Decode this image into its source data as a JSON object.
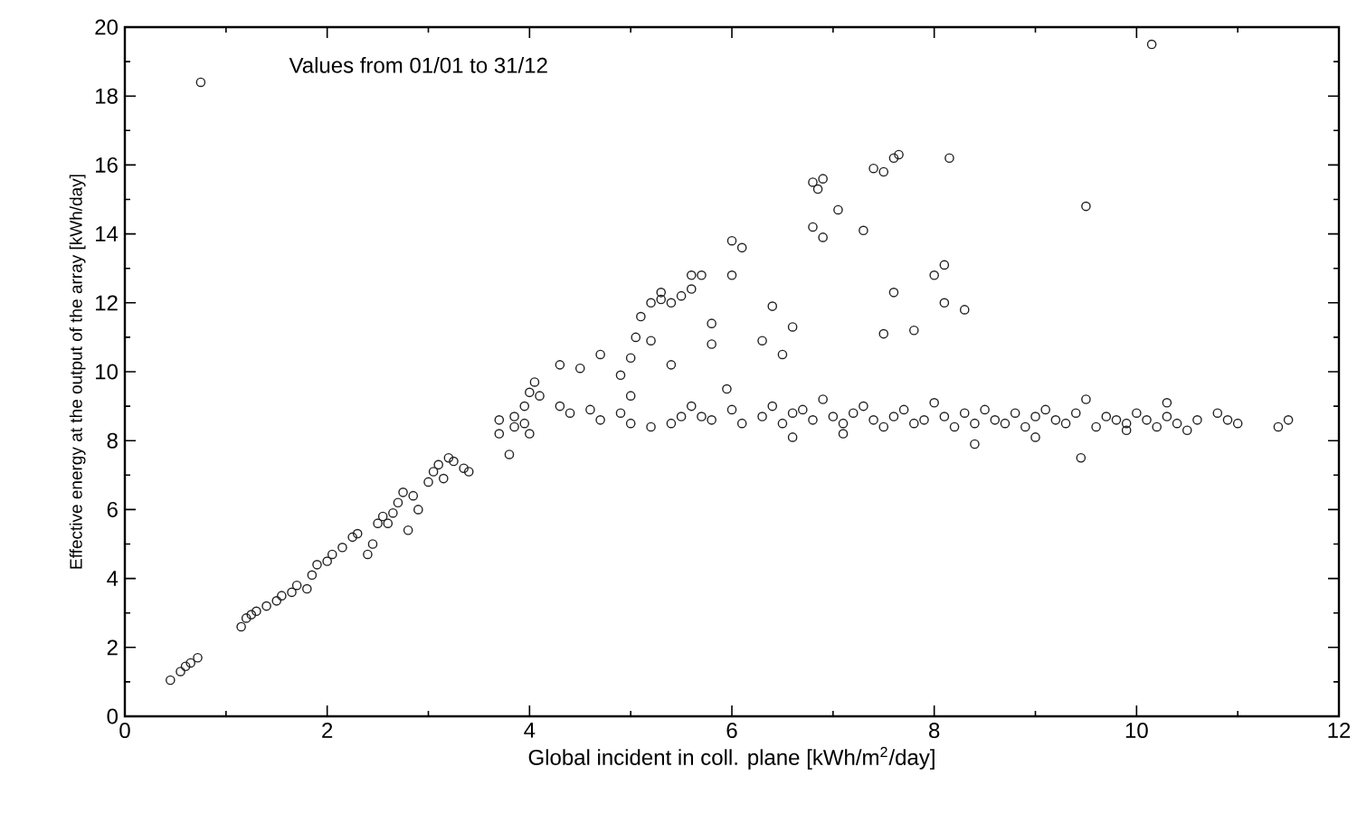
{
  "chart_data": {
    "type": "scatter",
    "annotations": [
      "Values from 01/01 to 31/12"
    ],
    "xlabel": "Global incident in coll. plane [kWh/m$^{2}$/day]",
    "ylabel": "Effective energy  at  the  output  of  the  array  [kWh/day]",
    "xlim": [
      0,
      12
    ],
    "ylim": [
      0,
      20
    ],
    "xticks": [
      0,
      {
        "value": 1,
        "label": null
      },
      2,
      {
        "value": 3,
        "label": null
      },
      4,
      {
        "value": 5,
        "label": null
      },
      6,
      {
        "value": 7,
        "label": null
      },
      8,
      {
        "value": 9,
        "label": null
      },
      10,
      {
        "value": 11,
        "label": null
      },
      12
    ],
    "yticks": [
      0,
      {
        "value": 1,
        "label": null
      },
      2,
      {
        "value": 3,
        "label": null
      },
      4,
      {
        "value": 5,
        "label": null
      },
      6,
      {
        "value": 7,
        "label": null
      },
      8,
      {
        "value": 9,
        "label": null
      },
      10,
      {
        "value": 11,
        "label": null
      },
      12,
      {
        "value": 13,
        "label": null
      },
      14,
      {
        "value": 15,
        "label": null
      },
      16,
      {
        "value": 17,
        "label": null
      },
      18,
      {
        "value": 19,
        "label": null
      },
      20
    ],
    "marker": "circle",
    "series": [
      {
        "color": "#222222",
        "x": [
          0.45,
          0.55,
          0.6,
          0.65,
          0.72,
          0.75,
          1.15,
          1.2,
          1.25,
          1.3,
          1.4,
          1.5,
          1.55,
          1.65,
          1.7,
          1.8,
          1.85,
          1.9,
          2.0,
          2.05,
          2.15,
          2.25,
          2.3,
          2.4,
          2.45,
          2.5,
          2.55,
          2.6,
          2.65,
          2.7,
          2.75,
          2.8,
          2.85,
          2.9,
          3.0,
          3.05,
          3.1,
          3.15,
          3.2,
          3.25,
          3.35,
          3.4,
          3.7,
          3.7,
          3.8,
          3.85,
          3.85,
          3.95,
          3.95,
          4.0,
          4.0,
          4.05,
          4.1,
          4.3,
          4.3,
          4.5,
          4.4,
          4.6,
          4.7,
          4.7,
          4.9,
          4.9,
          5.0,
          5.0,
          5.0,
          5.05,
          5.1,
          5.2,
          5.2,
          5.2,
          5.3,
          5.3,
          5.4,
          5.4,
          5.4,
          5.5,
          5.5,
          5.6,
          5.6,
          5.6,
          5.7,
          5.7,
          5.8,
          5.8,
          5.8,
          5.95,
          6.0,
          6.0,
          6.0,
          6.1,
          6.1,
          6.3,
          6.3,
          6.4,
          6.4,
          6.5,
          6.5,
          6.6,
          6.6,
          6.6,
          6.8,
          6.8,
          6.85,
          6.9,
          6.9,
          7.05,
          7.3,
          7.4,
          7.5,
          7.5,
          7.6,
          7.6,
          7.65,
          7.8,
          8.0,
          8.1,
          8.1,
          8.15,
          8.3,
          9.5,
          10.15,
          6.7,
          6.8,
          6.9,
          7.0,
          7.1,
          7.2,
          7.3,
          7.4,
          7.5,
          7.6,
          7.7,
          7.8,
          7.9,
          8.0,
          8.1,
          8.2,
          8.3,
          8.4,
          8.5,
          8.6,
          8.7,
          8.8,
          8.9,
          9.0,
          9.1,
          9.2,
          9.3,
          9.4,
          9.5,
          9.6,
          9.7,
          9.8,
          9.9,
          10.0,
          10.1,
          10.2,
          10.3,
          10.4,
          10.5,
          10.6,
          10.8,
          10.9,
          11.0,
          11.4,
          11.5,
          9.45,
          7.1,
          8.4,
          9.0,
          9.9,
          10.3
        ],
        "values": [
          1.05,
          1.3,
          1.45,
          1.55,
          1.7,
          18.4,
          2.6,
          2.85,
          2.95,
          3.05,
          3.2,
          3.35,
          3.5,
          3.6,
          3.8,
          3.7,
          4.1,
          4.4,
          4.5,
          4.7,
          4.9,
          5.2,
          5.3,
          4.7,
          5.0,
          5.6,
          5.8,
          5.6,
          5.9,
          6.2,
          6.5,
          5.4,
          6.4,
          6.0,
          6.8,
          7.1,
          7.3,
          6.9,
          7.5,
          7.4,
          7.2,
          7.1,
          8.6,
          8.2,
          7.6,
          8.7,
          8.4,
          9.0,
          8.5,
          9.4,
          8.2,
          9.7,
          9.3,
          10.2,
          9.0,
          10.1,
          8.8,
          8.9,
          10.5,
          8.6,
          8.8,
          9.9,
          10.4,
          9.3,
          8.5,
          11.0,
          11.6,
          12.0,
          10.9,
          8.4,
          12.3,
          12.1,
          8.5,
          12.0,
          10.2,
          12.2,
          8.7,
          12.8,
          12.4,
          9.0,
          12.8,
          8.7,
          10.8,
          11.4,
          8.6,
          9.5,
          13.8,
          12.8,
          8.9,
          13.6,
          8.5,
          10.9,
          8.7,
          11.9,
          9.0,
          10.5,
          8.5,
          11.3,
          8.8,
          8.1,
          14.2,
          15.5,
          15.3,
          13.9,
          15.6,
          14.7,
          14.1,
          15.9,
          15.8,
          11.1,
          16.2,
          12.3,
          16.3,
          11.2,
          12.8,
          13.1,
          12.0,
          16.2,
          11.8,
          14.8,
          19.5,
          8.9,
          8.6,
          9.2,
          8.7,
          8.5,
          8.8,
          9.0,
          8.6,
          8.4,
          8.7,
          8.9,
          8.5,
          8.6,
          9.1,
          8.7,
          8.4,
          8.8,
          8.5,
          8.9,
          8.6,
          8.5,
          8.8,
          8.4,
          8.7,
          8.9,
          8.6,
          8.5,
          8.8,
          9.2,
          8.4,
          8.7,
          8.6,
          8.5,
          8.8,
          8.6,
          8.4,
          8.7,
          8.5,
          8.3,
          8.6,
          8.8,
          8.6,
          8.5,
          8.4,
          8.6,
          7.5,
          8.2,
          7.9,
          8.1,
          8.3,
          9.1
        ]
      }
    ]
  }
}
